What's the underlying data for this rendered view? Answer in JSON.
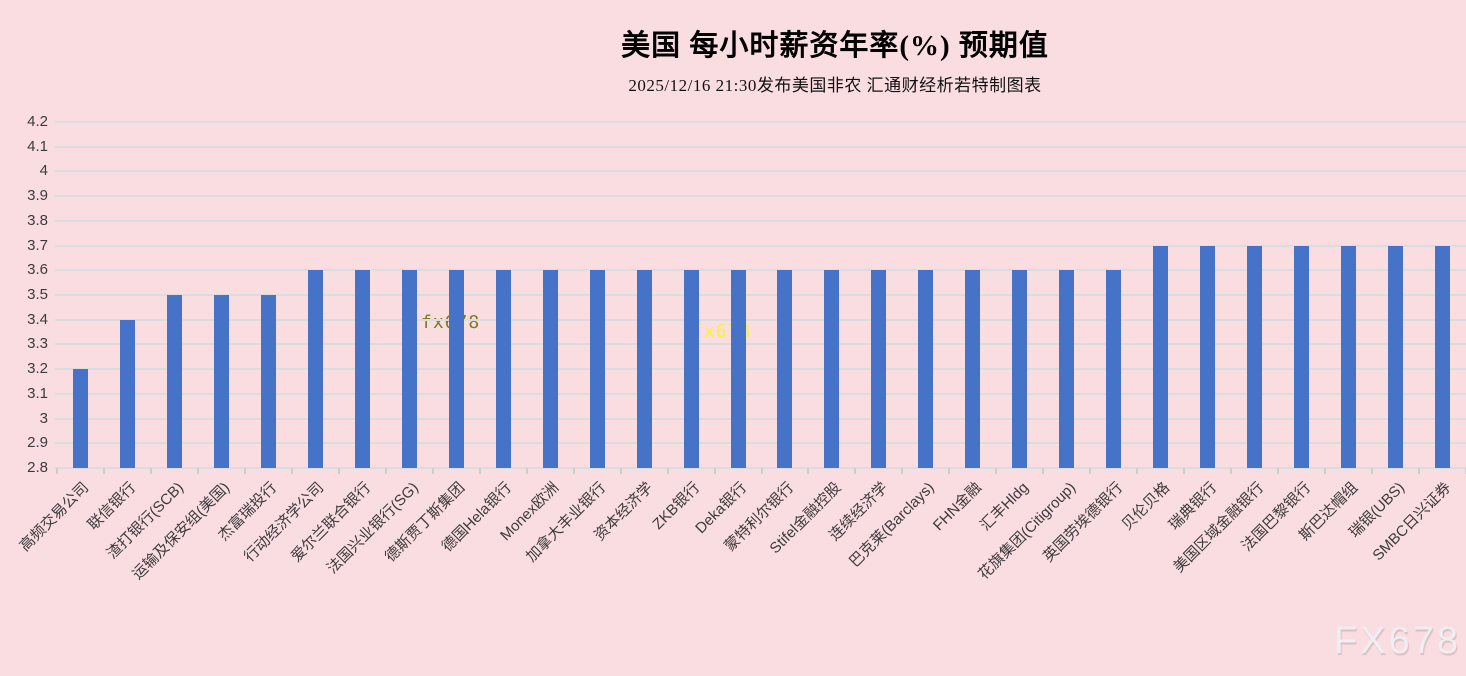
{
  "header": {
    "title": "美国 每小时薪资年率(%) 预期值",
    "subtitle": "2025/12/16 21:30发布美国非农 汇通财经析若特制图表"
  },
  "watermarks": {
    "inline_olive": "fx678",
    "inline_yellow": "fx678",
    "corner": "FX678"
  },
  "colors": {
    "background": "#fadde1",
    "bar": "#4673c8",
    "gridline": "#d9dddd",
    "axis_text": "#3b3b3b",
    "watermark_olive": "#7d7a24",
    "watermark_yellow": "#f6f332",
    "watermark_corner": "#edeff3"
  },
  "chart_data": {
    "type": "bar",
    "title": "美国 每小时薪资年率(%) 预期值",
    "xlabel": "",
    "ylabel": "",
    "ylim": [
      2.8,
      4.2
    ],
    "ytick_step": 0.1,
    "yticks_top_to_bottom": [
      "4.2",
      "4.1",
      "4",
      "3.9",
      "3.8",
      "3.7",
      "3.6",
      "3.5",
      "3.4",
      "3.3",
      "3.2",
      "3.1",
      "3",
      "2.9",
      "2.8"
    ],
    "grid": true,
    "legend": false,
    "categories": [
      "高频交易公司",
      "联信银行",
      "渣打银行(SCB)",
      "运输及保安组(美国)",
      "杰富瑞投行",
      "行动经济学公司",
      "爱尔兰联合银行",
      "法国兴业银行(SG)",
      "德斯贾丁斯集团",
      "德国Hela银行",
      "Monex欧洲",
      "加拿大丰业银行",
      "资本经济学",
      "ZKB银行",
      "Deka银行",
      "蒙特利尔银行",
      "Stifel金融控股",
      "连续经济学",
      "巴克莱(Barclays)",
      "FHN金融",
      "汇丰Hldg",
      "花旗集团(Citigroup)",
      "英国劳埃德银行",
      "贝伦贝格",
      "瑞典银行",
      "美国区域金融银行",
      "法国巴黎银行",
      "斯巴达帽组",
      "瑞银(UBS)",
      "SMBC日兴证券"
    ],
    "values": [
      3.2,
      3.4,
      3.5,
      3.5,
      3.5,
      3.6,
      3.6,
      3.6,
      3.6,
      3.6,
      3.6,
      3.6,
      3.6,
      3.6,
      3.6,
      3.6,
      3.6,
      3.6,
      3.6,
      3.6,
      3.6,
      3.6,
      3.6,
      3.7,
      3.7,
      3.7,
      3.7,
      3.7,
      3.7,
      3.7
    ]
  }
}
